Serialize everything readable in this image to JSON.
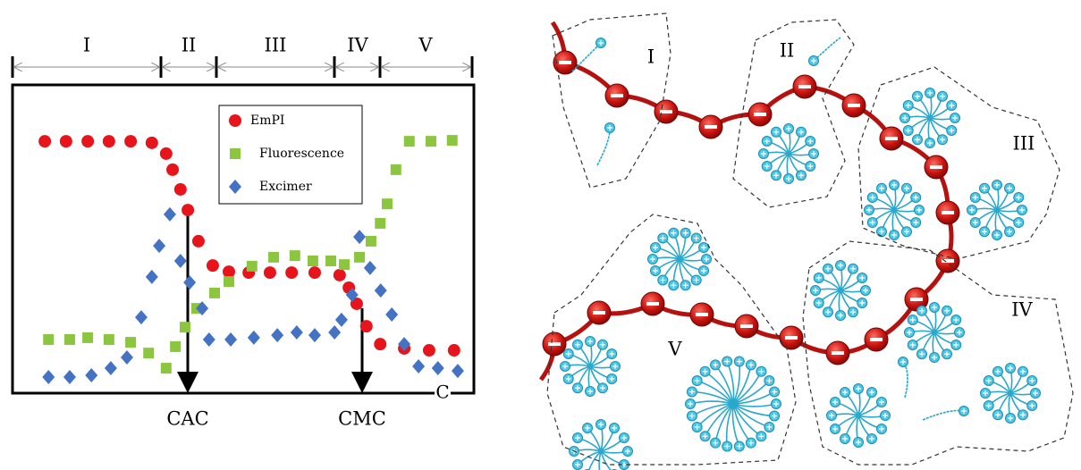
{
  "chart_data": {
    "type": "scatter",
    "regions": [
      "I",
      "II",
      "III",
      "IV",
      "V"
    ],
    "annotations": [
      "CAC",
      "CMC"
    ],
    "x_label": "C",
    "xlim": [
      0,
      100
    ],
    "ylim": [
      0,
      100
    ],
    "series": [
      {
        "name": "EmPI",
        "color": "#e8141b",
        "marker": "circle",
        "x": [
          7.0,
          11.6,
          16.3,
          20.9,
          25.6,
          30.2,
          33.3,
          34.7,
          36.4,
          38.0,
          40.3,
          43.4,
          46.9,
          51.2,
          55.8,
          60.5,
          65.5,
          70.9,
          72.9,
          74.6,
          76.7,
          79.7,
          84.9,
          90.3,
          95.7
        ],
        "values": [
          81.7,
          81.7,
          81.7,
          81.7,
          81.7,
          81.2,
          77.7,
          72.5,
          66.1,
          59.4,
          49.3,
          41.4,
          39.4,
          39.1,
          39.1,
          39.1,
          39.1,
          38.3,
          34.2,
          29.0,
          21.7,
          15.9,
          14.5,
          13.9,
          13.9
        ]
      },
      {
        "name": "Fluorescence",
        "color": "#8cc63f",
        "marker": "square",
        "x": [
          7.8,
          12.4,
          16.3,
          20.9,
          25.6,
          29.5,
          33.3,
          35.3,
          37.4,
          39.9,
          43.8,
          46.9,
          51.9,
          56.6,
          61.2,
          65.1,
          69.0,
          71.9,
          75.2,
          77.7,
          79.7,
          81.2,
          83.1,
          86.0,
          90.7,
          95.3
        ],
        "values": [
          17.4,
          17.4,
          18.0,
          17.4,
          16.5,
          13.0,
          8.1,
          15.1,
          21.4,
          27.5,
          32.5,
          36.2,
          41.2,
          44.1,
          44.6,
          42.9,
          42.9,
          41.7,
          44.1,
          49.3,
          55.1,
          61.4,
          72.5,
          81.7,
          81.7,
          82.0
        ]
      },
      {
        "name": "Excimer",
        "color": "#4472c4",
        "marker": "diamond",
        "x": [
          7.8,
          12.4,
          17.1,
          21.3,
          24.8,
          27.9,
          30.2,
          31.8,
          34.1,
          36.4,
          38.4,
          41.1,
          42.6,
          47.3,
          52.3,
          57.4,
          61.6,
          65.5,
          69.8,
          71.3,
          73.6,
          75.2,
          77.5,
          79.8,
          82.2,
          84.9,
          88.0,
          92.2,
          96.5
        ],
        "values": [
          5.2,
          5.2,
          5.8,
          8.1,
          11.6,
          24.6,
          37.7,
          47.8,
          58.0,
          42.9,
          35.9,
          27.5,
          17.4,
          17.4,
          18.0,
          18.8,
          19.7,
          18.8,
          19.7,
          23.8,
          31.9,
          50.7,
          40.6,
          33.3,
          25.5,
          15.9,
          8.7,
          8.1,
          7.2
        ]
      }
    ]
  },
  "diagram": {
    "labels": [
      "I",
      "II",
      "III",
      "IV",
      "V"
    ]
  }
}
